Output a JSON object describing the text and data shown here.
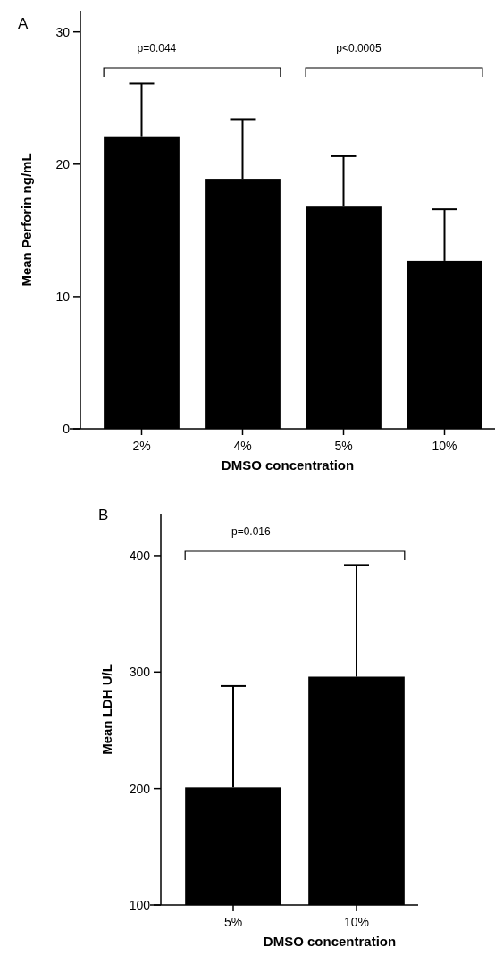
{
  "chart_data": [
    {
      "type": "bar",
      "title": "A",
      "xlabel": "DMSO concentration",
      "ylabel": "Mean Perforin ng/mL",
      "categories": [
        "2%",
        "4%",
        "5%",
        "10%"
      ],
      "values": [
        22.1,
        18.9,
        16.8,
        12.7
      ],
      "errors": [
        4.0,
        4.5,
        3.8,
        3.9
      ],
      "color": "#000000",
      "ylim": [
        0,
        31.6
      ],
      "yticks": [
        0,
        10,
        20,
        30
      ],
      "annotations": [
        "p=0.044",
        "p<0.0005"
      ]
    },
    {
      "type": "bar",
      "title": "B",
      "xlabel": "DMSO concentration",
      "ylabel": "Mean LDH U/L",
      "categories": [
        "5%",
        "10%"
      ],
      "values": [
        201,
        296
      ],
      "errors": [
        87,
        96
      ],
      "color": "#000000",
      "ylim": [
        100,
        436
      ],
      "yticks": [
        100,
        200,
        300,
        400
      ],
      "annotations": [
        "p=0.016"
      ]
    }
  ]
}
